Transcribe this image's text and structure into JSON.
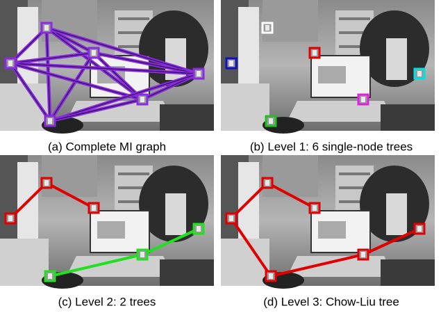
{
  "figure": {
    "panels": [
      {
        "caption": "(a) Complete MI graph"
      },
      {
        "caption": "(b) Level 1: 6 single-node trees"
      },
      {
        "caption": "(c) Level 2: 2 trees"
      },
      {
        "caption": "(d) Level 3: Chow-Liu tree"
      }
    ]
  }
}
